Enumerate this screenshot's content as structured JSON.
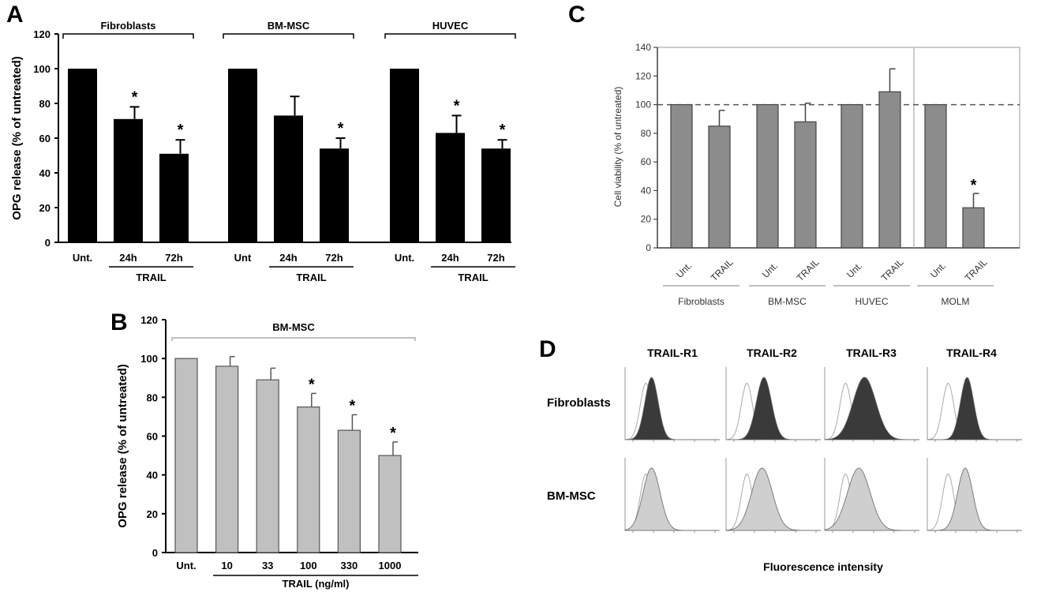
{
  "chart_data": [
    {
      "panel": "A",
      "type": "bar",
      "ylabel": "OPG release (% of untreated)",
      "ylim": [
        0,
        120
      ],
      "yticks": [
        0,
        20,
        40,
        60,
        80,
        100,
        120
      ],
      "groups": [
        {
          "label": "Fibroblasts",
          "categories": [
            "Unt.",
            "24h",
            "72h"
          ],
          "values": [
            100,
            71,
            51
          ],
          "errors": [
            0,
            7,
            8
          ],
          "significant": [
            false,
            true,
            true
          ],
          "bracket_label": "TRAIL"
        },
        {
          "label": "BM-MSC",
          "categories": [
            "Unt",
            "24h",
            "72h"
          ],
          "values": [
            100,
            73,
            54
          ],
          "errors": [
            0,
            11,
            6
          ],
          "significant": [
            false,
            false,
            true
          ],
          "bracket_label": "TRAIL"
        },
        {
          "label": "HUVEC",
          "categories": [
            "Unt.",
            "24h",
            "72h"
          ],
          "values": [
            100,
            63,
            54
          ],
          "errors": [
            0,
            10,
            5
          ],
          "significant": [
            false,
            true,
            true
          ],
          "bracket_label": "TRAIL"
        }
      ],
      "star_symbol": "*",
      "bar_color": "#000000"
    },
    {
      "panel": "B",
      "type": "bar",
      "title": "BM-MSC",
      "ylabel": "OPG release (% of untreated)",
      "xlabel": "TRAIL (ng/ml)",
      "ylim": [
        0,
        120
      ],
      "yticks": [
        0,
        20,
        40,
        60,
        80,
        100,
        120
      ],
      "categories": [
        "Unt.",
        "10",
        "33",
        "100",
        "330",
        "1000"
      ],
      "values": [
        100,
        96,
        89,
        75,
        63,
        50
      ],
      "errors": [
        0,
        5,
        6,
        7,
        8,
        7
      ],
      "significant": [
        false,
        false,
        false,
        true,
        true,
        true
      ],
      "star_symbol": "*",
      "bar_color": "#c0c0c0"
    },
    {
      "panel": "C",
      "type": "bar",
      "ylabel": "Cell viability (% of untreated)",
      "ylim": [
        0,
        140
      ],
      "yticks": [
        0,
        20,
        40,
        60,
        80,
        100,
        120,
        140
      ],
      "reference_line": 100,
      "groups": [
        {
          "label": "Fibroblasts",
          "categories": [
            "Unt.",
            "TRAIL"
          ],
          "values": [
            100,
            85
          ],
          "errors": [
            0,
            11
          ],
          "significant": [
            false,
            false
          ]
        },
        {
          "label": "BM-MSC",
          "categories": [
            "Unt.",
            "TRAIL"
          ],
          "values": [
            100,
            88
          ],
          "errors": [
            0,
            13
          ],
          "significant": [
            false,
            false
          ]
        },
        {
          "label": "HUVEC",
          "categories": [
            "Unt.",
            "TRAIL"
          ],
          "values": [
            100,
            109
          ],
          "errors": [
            0,
            16
          ],
          "significant": [
            false,
            false
          ]
        },
        {
          "label": "MOLM",
          "categories": [
            "Unt.",
            "TRAIL"
          ],
          "values": [
            100,
            28
          ],
          "errors": [
            0,
            10
          ],
          "significant": [
            false,
            true
          ]
        }
      ],
      "star_symbol": "*",
      "bar_color": "#8c8c8c"
    }
  ],
  "panels": {
    "a": {
      "letter": "A"
    },
    "b": {
      "letter": "B"
    },
    "c": {
      "letter": "C"
    },
    "d": {
      "letter": "D",
      "columns": [
        "TRAIL-R1",
        "TRAIL-R2",
        "TRAIL-R3",
        "TRAIL-R4"
      ],
      "rows": [
        "Fibroblasts",
        "BM-MSC"
      ],
      "xlabel": "Fluorescence intensity",
      "row_colors": [
        "#3a3a3a",
        "#cfcfcf"
      ],
      "peaks": [
        [
          {
            "pos": 0.28,
            "width": 0.07
          },
          {
            "pos": 0.4,
            "width": 0.08
          },
          {
            "pos": 0.42,
            "width": 0.12
          },
          {
            "pos": 0.42,
            "width": 0.07
          }
        ],
        [
          {
            "pos": 0.28,
            "width": 0.09
          },
          {
            "pos": 0.38,
            "width": 0.11
          },
          {
            "pos": 0.36,
            "width": 0.12
          },
          {
            "pos": 0.4,
            "width": 0.08
          }
        ]
      ]
    }
  }
}
